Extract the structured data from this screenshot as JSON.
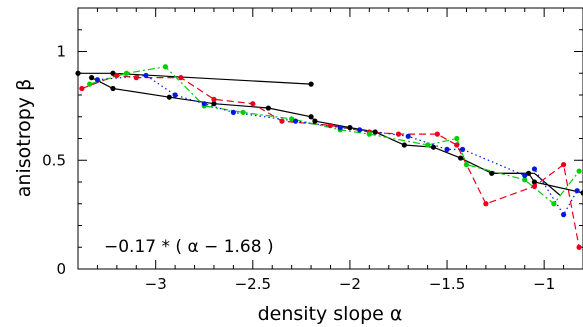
{
  "chart_data": {
    "type": "scatter",
    "xlabel": "density slope α",
    "ylabel": "anisotropy β",
    "xlim": [
      -3.4,
      -0.8
    ],
    "ylim": [
      0,
      1.2
    ],
    "x_ticks": [
      -3,
      -2.5,
      -2,
      -1.5,
      -1
    ],
    "x_tick_labels": [
      "−3",
      "−2.5",
      "−2",
      "−1.5",
      "−1"
    ],
    "y_ticks": [
      0,
      0.5,
      1
    ],
    "y_tick_labels": [
      "0",
      "0.5",
      "1"
    ],
    "annotation": "−0.17 * ( α − 1.68 )",
    "grid": false,
    "colors": {
      "black": "#000000",
      "red": "#e8001c",
      "green": "#00d000",
      "blue": "#0018e0"
    },
    "series": [
      {
        "color_key": "black",
        "style": "solid+points",
        "points": [
          [
            -3.4,
            0.9
          ],
          [
            -3.22,
            0.9
          ],
          [
            -2.2,
            0.85
          ]
        ]
      },
      {
        "color_key": "black",
        "style": "solid+points",
        "points": [
          [
            -3.33,
            0.88
          ],
          [
            -3.22,
            0.83
          ],
          [
            -2.93,
            0.79
          ],
          [
            -2.7,
            0.76
          ],
          [
            -2.42,
            0.74
          ],
          [
            -2.2,
            0.7
          ],
          [
            -2.18,
            0.68
          ],
          [
            -2.0,
            0.65
          ],
          [
            -1.87,
            0.63
          ],
          [
            -1.72,
            0.57
          ],
          [
            -1.57,
            0.56
          ],
          [
            -1.43,
            0.51
          ],
          [
            -1.27,
            0.44
          ],
          [
            -1.08,
            0.44
          ],
          [
            -1.05,
            0.4
          ],
          [
            -0.8,
            0.35
          ]
        ]
      },
      {
        "color_key": "black",
        "style": "solid",
        "points": [
          [
            -1.27,
            0.44
          ],
          [
            -1.05,
            0.44
          ],
          [
            -0.92,
            0.34
          ]
        ]
      },
      {
        "color_key": "red",
        "style": "dashed+points",
        "points": [
          [
            -3.38,
            0.83
          ],
          [
            -3.2,
            0.89
          ],
          [
            -3.1,
            0.88
          ],
          [
            -2.87,
            0.88
          ],
          [
            -2.7,
            0.78
          ],
          [
            -2.5,
            0.76
          ],
          [
            -2.35,
            0.68
          ],
          [
            -2.1,
            0.66
          ],
          [
            -1.9,
            0.63
          ],
          [
            -1.75,
            0.62
          ],
          [
            -1.55,
            0.62
          ],
          [
            -1.45,
            0.57
          ],
          [
            -1.3,
            0.3
          ],
          [
            -1.05,
            0.38
          ],
          [
            -0.9,
            0.48
          ],
          [
            -0.82,
            0.1
          ]
        ]
      },
      {
        "color_key": "green",
        "style": "dashdot+points",
        "points": [
          [
            -3.34,
            0.85
          ],
          [
            -3.15,
            0.9
          ],
          [
            -2.95,
            0.93
          ],
          [
            -2.75,
            0.75
          ],
          [
            -2.55,
            0.72
          ],
          [
            -2.3,
            0.69
          ],
          [
            -2.05,
            0.64
          ],
          [
            -1.9,
            0.62
          ],
          [
            -1.6,
            0.57
          ],
          [
            -1.45,
            0.6
          ],
          [
            -1.4,
            0.48
          ],
          [
            -1.1,
            0.41
          ],
          [
            -0.95,
            0.3
          ],
          [
            -0.82,
            0.45
          ]
        ]
      },
      {
        "color_key": "blue",
        "style": "dotted+points",
        "points": [
          [
            -3.3,
            0.87
          ],
          [
            -3.05,
            0.89
          ],
          [
            -2.9,
            0.8
          ],
          [
            -2.75,
            0.76
          ],
          [
            -2.6,
            0.72
          ],
          [
            -2.28,
            0.68
          ],
          [
            -2.05,
            0.65
          ],
          [
            -1.95,
            0.64
          ],
          [
            -1.7,
            0.61
          ],
          [
            -1.5,
            0.55
          ],
          [
            -1.42,
            0.55
          ],
          [
            -1.1,
            0.43
          ],
          [
            -1.05,
            0.46
          ],
          [
            -0.9,
            0.25
          ],
          [
            -0.83,
            0.36
          ]
        ]
      }
    ]
  }
}
